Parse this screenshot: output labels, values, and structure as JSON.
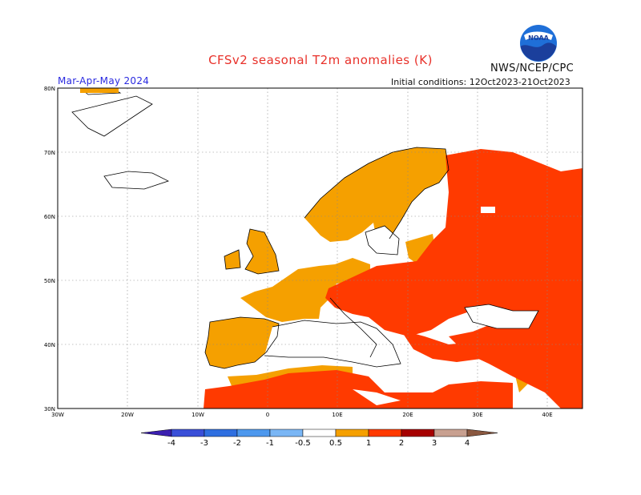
{
  "title": "CFSv2 seasonal T2m anomalies (K)",
  "agency": "NWS/NCEP/CPC",
  "logo_text": "NOAA",
  "season": "Mar-Apr-May 2024",
  "initial_conditions": "Initial conditions: 12Oct2023-21Oct2023",
  "map": {
    "lat_labels": [
      "80N",
      "70N",
      "60N",
      "50N",
      "40N",
      "30N"
    ],
    "lon_labels": [
      "30W",
      "20W",
      "10W",
      "0",
      "10E",
      "20E",
      "30E",
      "40E"
    ],
    "lon_range": [
      -30,
      45
    ],
    "lat_range": [
      30,
      80
    ]
  },
  "legend": {
    "ticks": [
      "-4",
      "-3",
      "-2",
      "-1",
      "-0.5",
      "0.5",
      "1",
      "2",
      "3",
      "4"
    ],
    "colors": [
      "#3b1fb0",
      "#3a4fd8",
      "#2f6fe0",
      "#4d98ee",
      "#7ab6f5",
      "#ffffff",
      "#f5a000",
      "#ff3a00",
      "#a60000",
      "#c8a090",
      "#8a5840"
    ]
  },
  "colors": {
    "warm_0_5_1": "#f5a000",
    "warm_1_2": "#ff3a00",
    "title": "#e8312a",
    "season": "#2a2ae0"
  }
}
